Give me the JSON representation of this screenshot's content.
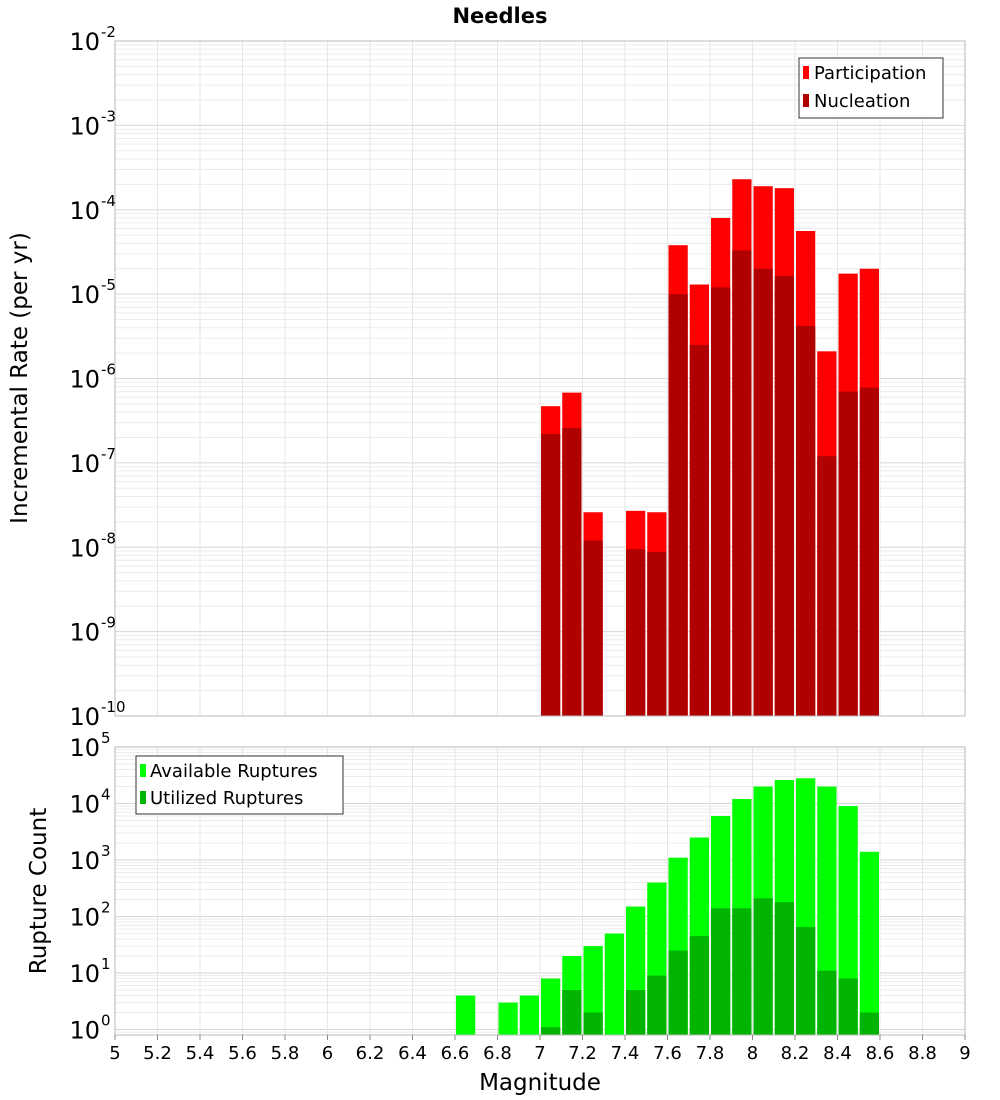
{
  "chart_data": [
    {
      "type": "bar",
      "title": "Needles",
      "xlabel": "",
      "ylabel": "Incremental Rate (per yr)",
      "yscale": "log",
      "ylim": [
        1e-10,
        0.01
      ],
      "xlim": [
        5,
        9
      ],
      "bar_width": 0.1,
      "grid": true,
      "legend_position": "top-right",
      "x": [
        7.0,
        7.1,
        7.2,
        7.3,
        7.4,
        7.5,
        7.6,
        7.7,
        7.8,
        7.9,
        8.0,
        8.1,
        8.2,
        8.3,
        8.4,
        8.5
      ],
      "series": [
        {
          "name": "Participation",
          "color": "#ff0000",
          "values": [
            4.7e-07,
            6.8e-07,
            2.6e-08,
            null,
            2.7e-08,
            2.6e-08,
            3.8e-05,
            1.3e-05,
            8e-05,
            0.00023,
            0.00019,
            0.00018,
            5.6e-05,
            2.1e-06,
            1.75e-05,
            2e-05
          ]
        },
        {
          "name": "Nucleation",
          "color": "#b00000",
          "values": [
            2.2e-07,
            2.6e-07,
            1.2e-08,
            null,
            9.5e-09,
            8.8e-09,
            1e-05,
            2.5e-06,
            1.2e-05,
            3.3e-05,
            2e-05,
            1.65e-05,
            4.2e-06,
            1.2e-07,
            7e-07,
            7.8e-07
          ]
        }
      ]
    },
    {
      "type": "bar",
      "title": "",
      "xlabel": "Magnitude",
      "ylabel": "Rupture Count",
      "yscale": "log",
      "ylim": [
        0.8,
        100000.0
      ],
      "xlim": [
        5,
        9
      ],
      "bar_width": 0.1,
      "grid": true,
      "legend_position": "top-left",
      "x": [
        6.6,
        6.7,
        6.8,
        6.9,
        7.0,
        7.1,
        7.2,
        7.3,
        7.4,
        7.5,
        7.6,
        7.7,
        7.8,
        7.9,
        8.0,
        8.1,
        8.2,
        8.3,
        8.4,
        8.5
      ],
      "series": [
        {
          "name": "Available Ruptures",
          "color": "#00ff00",
          "values": [
            4,
            null,
            3,
            4,
            8,
            20,
            30,
            50,
            150,
            400,
            1100,
            2500,
            6000,
            12000,
            20000,
            26000,
            28000,
            20000,
            9000,
            1400
          ]
        },
        {
          "name": "Utilized Ruptures",
          "color": "#00b400",
          "values": [
            null,
            null,
            null,
            null,
            1.1,
            5,
            2,
            null,
            5,
            9,
            25,
            45,
            140,
            140,
            210,
            180,
            65,
            11,
            8,
            2
          ]
        }
      ]
    }
  ],
  "x_ticks": [
    "5",
    "5.2",
    "5.4",
    "5.6",
    "5.8",
    "6",
    "6.2",
    "6.4",
    "6.6",
    "6.8",
    "7",
    "7.2",
    "7.4",
    "7.6",
    "7.8",
    "8",
    "8.2",
    "8.4",
    "8.6",
    "8.8",
    "9"
  ],
  "top_y_ticks": [
    "-2",
    "-3",
    "-4",
    "-5",
    "-6",
    "-7",
    "-8",
    "-9",
    "-10"
  ],
  "bottom_y_ticks": [
    "5",
    "4",
    "3",
    "2",
    "1",
    "0"
  ],
  "tick_base": "10"
}
